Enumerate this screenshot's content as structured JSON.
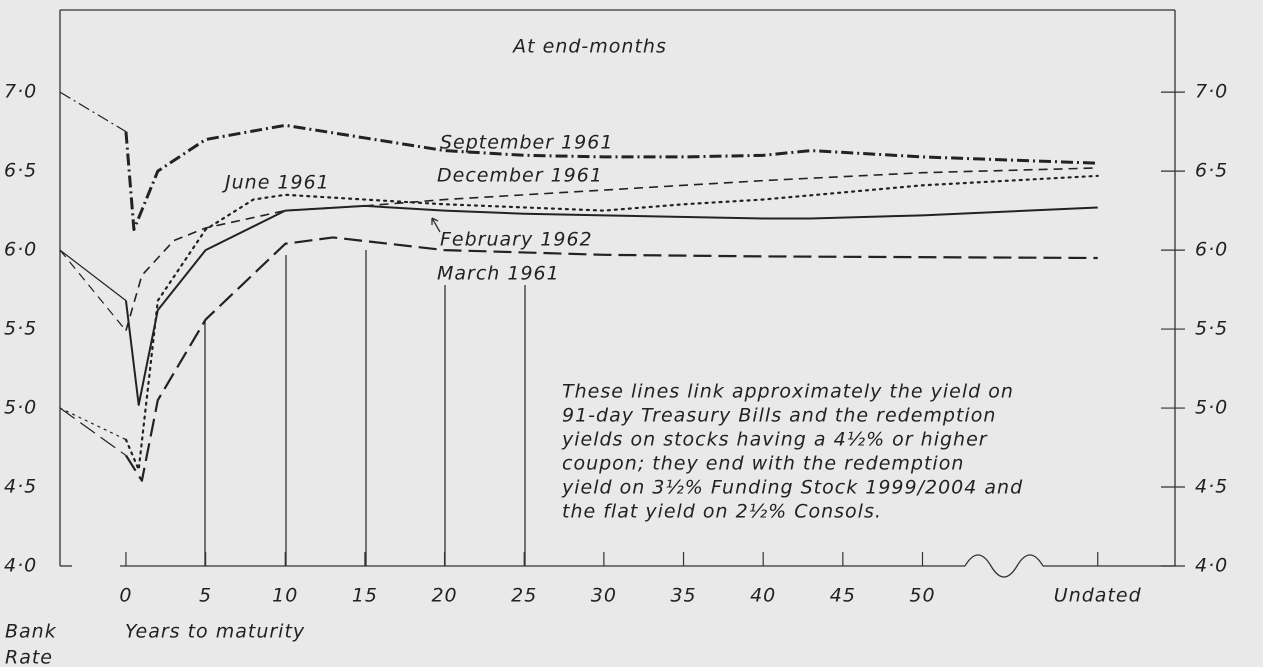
{
  "chart_data": {
    "type": "line",
    "title": "At end-months",
    "x_label": "Years to maturity",
    "y_label": [
      "Bank",
      "Rate"
    ],
    "xlim": [
      -4.14,
      65.85
    ],
    "ylim": [
      4,
      7.52
    ],
    "xticks": [
      0,
      5,
      10,
      15,
      20,
      25,
      30,
      35,
      40,
      45,
      50,
      {
        "value": 61,
        "label": "Undated"
      }
    ],
    "yticks": [
      {
        "value": 4,
        "label": "4·0"
      },
      {
        "value": 4.5,
        "label": "4·5"
      },
      {
        "value": 5,
        "label": "5·0"
      },
      {
        "value": 5.5,
        "label": "5·5"
      },
      {
        "value": 6,
        "label": "6·0"
      },
      {
        "value": 6.5,
        "label": "6·5"
      },
      {
        "value": 7,
        "label": "7·0"
      }
    ],
    "series": [
      {
        "name": "September 1961",
        "color": "#222",
        "style": "dash-dot",
        "bank_rate": 7.0,
        "x": [
          0,
          0.5,
          2,
          5,
          10,
          15,
          20,
          25,
          30,
          35,
          40,
          43,
          50,
          61
        ],
        "values": [
          6.75,
          6.13,
          6.5,
          6.7,
          6.79,
          6.71,
          6.63,
          6.6,
          6.59,
          6.59,
          6.6,
          6.63,
          6.59,
          6.55
        ]
      },
      {
        "name": "December 1961",
        "color": "#222",
        "style": "dash",
        "bank_rate": 6.0,
        "x": [
          0,
          1,
          3,
          5,
          10,
          15,
          20,
          25,
          30,
          40,
          50,
          61
        ],
        "values": [
          5.49,
          5.84,
          6.06,
          6.14,
          6.25,
          6.28,
          6.32,
          6.35,
          6.38,
          6.44,
          6.49,
          6.52
        ]
      },
      {
        "name": "June 1961",
        "color": "#222",
        "style": "dot",
        "bank_rate": 5.0,
        "x": [
          0,
          0.8,
          2,
          5,
          8,
          10,
          15,
          20,
          30,
          35,
          40,
          50,
          61
        ],
        "values": [
          4.8,
          4.61,
          5.68,
          6.13,
          6.32,
          6.35,
          6.32,
          6.29,
          6.25,
          6.29,
          6.32,
          6.41,
          6.47
        ]
      },
      {
        "name": "February 1962",
        "color": "#222",
        "style": "solid",
        "bank_rate": 6.0,
        "x": [
          0,
          0.8,
          2,
          5,
          10,
          15,
          20,
          25,
          30,
          40,
          43,
          50,
          61
        ],
        "values": [
          5.68,
          5.02,
          5.62,
          6.0,
          6.25,
          6.28,
          6.25,
          6.23,
          6.22,
          6.2,
          6.2,
          6.22,
          6.27
        ]
      },
      {
        "name": "March 1961",
        "color": "#222",
        "style": "long-dash",
        "bank_rate": 5.0,
        "x": [
          0,
          1,
          2,
          5,
          10,
          13,
          20,
          30,
          40,
          61
        ],
        "values": [
          4.7,
          4.54,
          5.05,
          5.56,
          6.04,
          6.08,
          6.0,
          5.97,
          5.96,
          5.95
        ]
      }
    ],
    "note": [
      "These lines link approximately the yield on",
      "91-day Treasury Bills and the redemption",
      "yields on stocks having a 4½% or higher",
      "coupon; they end with the redemption",
      "yield on 3½% Funding Stock 1999/2004 and",
      "the flat yield on 2½% Consols."
    ]
  }
}
